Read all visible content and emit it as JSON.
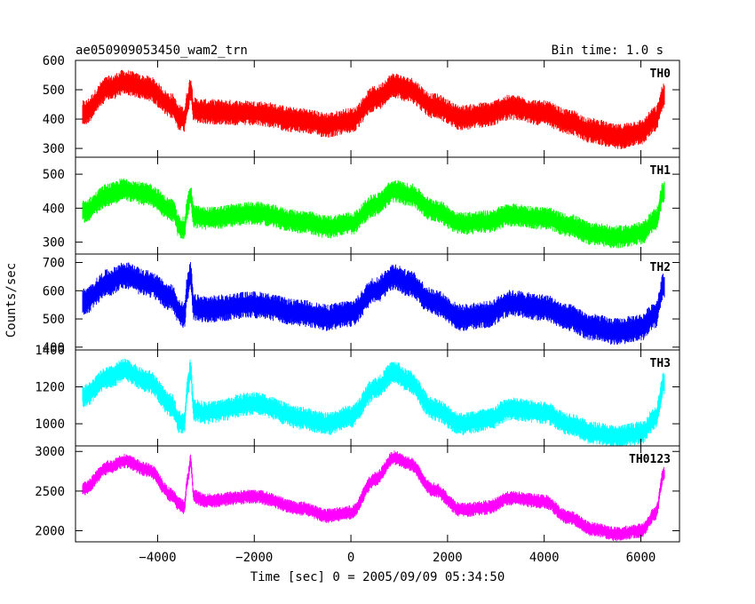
{
  "header": {
    "title": "ae050909053450_wam2_trn",
    "bin_time": "Bin time: 1.0 s"
  },
  "chart_data": {
    "type": "line",
    "xlabel": "Time [sec] 0 = 2005/09/09 05:34:50",
    "ylabel": "Counts/sec",
    "xlim": [
      -5700,
      6800
    ],
    "x_ticks": [
      -4000,
      -2000,
      0,
      2000,
      4000,
      6000
    ],
    "x_tick_labels": [
      "−4000",
      "−2000",
      "0",
      "2000",
      "4000",
      "6000"
    ],
    "x_range_data": [
      -5550,
      6480
    ],
    "grid": false,
    "panels": [
      {
        "name": "TH0",
        "color": "#ff0000",
        "ylim": [
          270,
          600
        ],
        "yticks": [
          300,
          400,
          500,
          600
        ],
        "noise": 38,
        "trend": {
          "x": [
            -5550,
            -5000,
            -4700,
            -4200,
            -3700,
            -3550,
            -3450,
            -3380,
            -3320,
            -3250,
            -3000,
            -2000,
            -1000,
            -500,
            0,
            500,
            900,
            1200,
            1700,
            2300,
            2800,
            3300,
            4000,
            4500,
            5000,
            5500,
            6000,
            6300,
            6480
          ],
          "y": [
            420,
            505,
            525,
            505,
            445,
            405,
            400,
            460,
            505,
            430,
            425,
            420,
            395,
            380,
            395,
            470,
            515,
            500,
            445,
            405,
            415,
            440,
            420,
            390,
            360,
            340,
            355,
            400,
            480
          ]
        }
      },
      {
        "name": "TH1",
        "color": "#00ff00",
        "ylim": [
          265,
          550
        ],
        "yticks": [
          300,
          400,
          500
        ],
        "noise": 30,
        "trend": {
          "x": [
            -5550,
            -5000,
            -4700,
            -4200,
            -3700,
            -3550,
            -3450,
            -3380,
            -3320,
            -3250,
            -3000,
            -2000,
            -1000,
            -500,
            0,
            500,
            900,
            1200,
            1700,
            2300,
            2800,
            3300,
            4000,
            4500,
            5000,
            5500,
            6000,
            6300,
            6480
          ],
          "y": [
            390,
            440,
            455,
            440,
            395,
            345,
            340,
            405,
            440,
            375,
            370,
            385,
            360,
            345,
            355,
            410,
            450,
            440,
            395,
            355,
            360,
            380,
            370,
            350,
            325,
            315,
            325,
            365,
            450
          ]
        }
      },
      {
        "name": "TH2",
        "color": "#0000ff",
        "ylim": [
          390,
          730
        ],
        "yticks": [
          400,
          500,
          600,
          700
        ],
        "noise": 42,
        "trend": {
          "x": [
            -5550,
            -5000,
            -4700,
            -4200,
            -3700,
            -3550,
            -3450,
            -3380,
            -3320,
            -3250,
            -3000,
            -2000,
            -1000,
            -500,
            0,
            500,
            900,
            1200,
            1700,
            2300,
            2800,
            3300,
            4000,
            4500,
            5000,
            5500,
            6000,
            6300,
            6480
          ],
          "y": [
            560,
            630,
            655,
            625,
            575,
            525,
            510,
            615,
            655,
            540,
            535,
            550,
            520,
            505,
            520,
            600,
            650,
            625,
            560,
            505,
            515,
            555,
            540,
            505,
            470,
            455,
            470,
            515,
            620
          ]
        }
      },
      {
        "name": "TH3",
        "color": "#00ffff",
        "ylim": [
          880,
          1400
        ],
        "yticks": [
          1000,
          1200,
          1400
        ],
        "noise": 55,
        "trend": {
          "x": [
            -5550,
            -5000,
            -4700,
            -4200,
            -3700,
            -3550,
            -3450,
            -3380,
            -3320,
            -3250,
            -3000,
            -2000,
            -1000,
            -500,
            0,
            500,
            900,
            1200,
            1700,
            2300,
            2800,
            3300,
            4000,
            4500,
            5000,
            5500,
            6000,
            6300,
            6480
          ],
          "y": [
            1150,
            1250,
            1290,
            1230,
            1100,
            1010,
            1000,
            1200,
            1290,
            1075,
            1060,
            1110,
            1030,
            1000,
            1040,
            1190,
            1280,
            1230,
            1080,
            1000,
            1020,
            1080,
            1060,
            1000,
            950,
            930,
            950,
            1030,
            1220
          ]
        }
      },
      {
        "name": "TH0123",
        "color": "#ff00ff",
        "ylim": [
          1860,
          3070
        ],
        "yticks": [
          2000,
          2500,
          3000
        ],
        "noise": 80,
        "trend": {
          "x": [
            -5550,
            -5000,
            -4700,
            -4200,
            -3700,
            -3550,
            -3450,
            -3380,
            -3320,
            -3250,
            -3000,
            -2000,
            -1000,
            -500,
            0,
            500,
            900,
            1200,
            1700,
            2300,
            2800,
            3300,
            4000,
            4500,
            5000,
            5500,
            6000,
            6300,
            6480
          ],
          "y": [
            2530,
            2800,
            2880,
            2770,
            2450,
            2330,
            2300,
            2650,
            2880,
            2430,
            2380,
            2430,
            2280,
            2190,
            2230,
            2650,
            2920,
            2850,
            2520,
            2260,
            2290,
            2410,
            2370,
            2170,
            2020,
            1960,
            2000,
            2210,
            2720
          ]
        }
      }
    ]
  }
}
